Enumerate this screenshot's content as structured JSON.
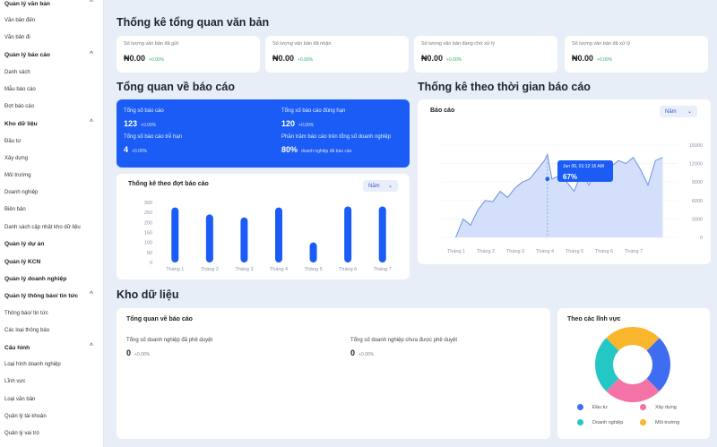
{
  "sidebar": {
    "items": [
      {
        "label": "Quản lý văn bản",
        "group": true,
        "chev": "^"
      },
      {
        "label": "Văn bản đến",
        "group": false
      },
      {
        "label": "Văn bản đi",
        "group": false
      },
      {
        "label": "Quản lý báo cáo",
        "group": true,
        "chev": "^"
      },
      {
        "label": "Danh sách",
        "group": false
      },
      {
        "label": "Mẫu báo cáo",
        "group": false
      },
      {
        "label": "Đợt báo cáo",
        "group": false
      },
      {
        "label": "Kho dữ liệu",
        "group": true,
        "chev": "^"
      },
      {
        "label": "Đầu tư",
        "group": false
      },
      {
        "label": "Xây dựng",
        "group": false
      },
      {
        "label": "Môi trường",
        "group": false
      },
      {
        "label": "Doanh nghiệp",
        "group": false
      },
      {
        "label": "Biên bản",
        "group": false
      },
      {
        "label": "Danh sách cập nhật kho dữ liệu",
        "group": false
      },
      {
        "label": "Quản lý dự án",
        "group": true
      },
      {
        "label": "Quản lý KCN",
        "group": true
      },
      {
        "label": "Quản lý doanh nghiệp",
        "group": true
      },
      {
        "label": "Quản lý thông báo/ tin tức",
        "group": true,
        "chev": "^"
      },
      {
        "label": "Thông báo/ tin tức",
        "group": false
      },
      {
        "label": "Các loại thông báo",
        "group": false
      },
      {
        "label": "Cấu hình",
        "group": true,
        "chev": "^"
      },
      {
        "label": "Loại hình doanh nghiệp",
        "group": false
      },
      {
        "label": "Lĩnh vực",
        "group": false
      },
      {
        "label": "Loại văn bản",
        "group": false
      },
      {
        "label": "Quản lý tài khoản",
        "group": false
      },
      {
        "label": "Quản lý vai trò",
        "group": false
      }
    ]
  },
  "overview": {
    "title": "Thống kê tổng quan văn bản",
    "stats": [
      {
        "label": "Số lượng văn bản đã gửi",
        "value": "₦0.00",
        "pct": "+0.00%"
      },
      {
        "label": "Số lượng văn bản đã nhận",
        "value": "₦0.00",
        "pct": "+0.00%"
      },
      {
        "label": "Số lượng văn bản đang chờ xử lý",
        "value": "₦0.00",
        "pct": "+0.00%"
      },
      {
        "label": "Số lượng văn bản đã xử lý",
        "value": "₦0.00",
        "pct": "+0.00%"
      }
    ]
  },
  "reports": {
    "title": "Tổng quan về báo cáo",
    "total_label": "Tổng số báo cáo",
    "total_value": "123",
    "total_pct": "+0.00%",
    "ontime_label": "Tổng số báo cáo đúng hạn",
    "ontime_value": "120",
    "ontime_pct": "+0.00%",
    "late_label": "Tổng số báo cáo trễ hạn",
    "late_value": "4",
    "late_pct": "+0.00%",
    "percent_label": "Phần trăm báo cáo trên tổng số doanh nghiệp",
    "percent_value": "80%",
    "percent_sub": "doanh nghiệp đã báo cáo"
  },
  "bar_card": {
    "title": "Thống kê theo đợt báo cáo",
    "select": "Năm",
    "select_arrow": "⌄"
  },
  "line_section": {
    "title": "Thống kê theo thời gian báo cáo",
    "card_title": "Báo cáo",
    "select": "Năm",
    "select_arrow": "⌄",
    "tooltip_date": "Jun 06, 01:12:16 AM",
    "tooltip_value": "67%"
  },
  "warehouse": {
    "title": "Kho dữ liệu",
    "card_title": "Tổng quan về báo cáo",
    "approved_label": "Tổng số doanh nghiệp đã phê duyệt",
    "approved_value": "0",
    "approved_pct": "+0.00%",
    "pending_label": "Tổng số doanh nghiệp chưa được phê duyệt",
    "pending_value": "0",
    "pending_pct": "+0.00%"
  },
  "donut_card": {
    "title": "Theo các lĩnh vực"
  },
  "chart_data": [
    {
      "type": "bar",
      "categories": [
        "Tháng 1",
        "Tháng 2",
        "Tháng 3",
        "Tháng 4",
        "Tháng 5",
        "Tháng 6",
        "Tháng 7"
      ],
      "values": [
        275,
        240,
        225,
        275,
        100,
        280,
        280
      ],
      "yticks": [
        0,
        50,
        100,
        150,
        200,
        250,
        300
      ],
      "ylim": [
        0,
        300
      ],
      "color": "#1a5cf5"
    },
    {
      "type": "area",
      "categories": [
        "Tháng 1",
        "Tháng 2",
        "Tháng 3",
        "Tháng 4",
        "Tháng 5",
        "Tháng 6",
        "Tháng 7"
      ],
      "x": [
        0,
        0.25,
        0.5,
        0.75,
        1,
        1.25,
        1.5,
        1.75,
        2,
        2.25,
        2.5,
        2.75,
        3,
        3.1,
        3.25,
        3.5,
        3.75,
        4,
        4.25,
        4.5,
        4.75,
        5,
        5.25,
        5.5,
        5.75,
        6,
        6.25,
        6.5,
        6.75,
        7
      ],
      "values": [
        0,
        3000,
        2000,
        4500,
        6000,
        5800,
        7500,
        6500,
        8000,
        9000,
        9500,
        11000,
        12500,
        13500,
        9500,
        10000,
        9000,
        7500,
        10500,
        8500,
        11000,
        12000,
        11500,
        12500,
        12000,
        13000,
        11000,
        8500,
        12500,
        13000
      ],
      "yticks": [
        0,
        3000,
        6000,
        9000,
        12000,
        15000
      ],
      "ylim": [
        0,
        15000
      ],
      "xlim": [
        -0.5,
        7.5
      ],
      "color": "#1a5cf5"
    },
    {
      "type": "pie",
      "categories": [
        "Đầu tư",
        "Xây dựng",
        "Doanh nghiệp",
        "Môi trường"
      ],
      "values": [
        25,
        25,
        25,
        25
      ],
      "colors": [
        "#3f6df2",
        "#f472a6",
        "#f9b52c",
        "#25c7c5"
      ]
    }
  ]
}
